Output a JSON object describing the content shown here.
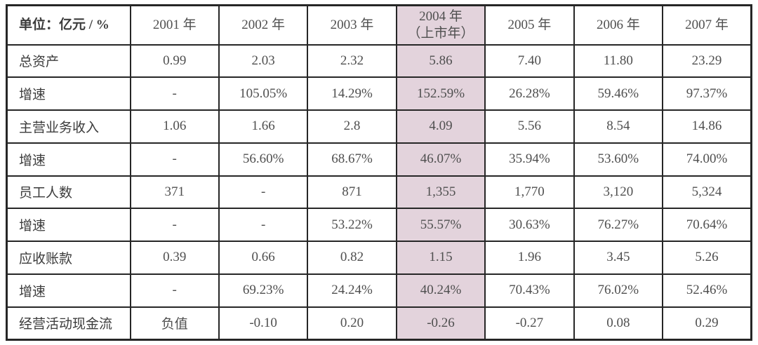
{
  "chart_data": {
    "type": "table",
    "unit_header": "单位：亿元 / %",
    "highlight_col_index": 3,
    "highlight_color": "#e3d3dc",
    "border_color": "#262626",
    "text_color": "#4f4f4f",
    "columns": [
      {
        "label": "2001 年"
      },
      {
        "label": "2002 年"
      },
      {
        "label": "2003 年"
      },
      {
        "label": "2004 年",
        "sublabel": "（上市年）",
        "highlight": true
      },
      {
        "label": "2005 年"
      },
      {
        "label": "2006 年"
      },
      {
        "label": "2007 年"
      }
    ],
    "rows": [
      {
        "label": "总资产",
        "values": [
          "0.99",
          "2.03",
          "2.32",
          "5.86",
          "7.40",
          "11.80",
          "23.29"
        ]
      },
      {
        "label": "增速",
        "values": [
          "-",
          "105.05%",
          "14.29%",
          "152.59%",
          "26.28%",
          "59.46%",
          "97.37%"
        ]
      },
      {
        "label": "主营业务收入",
        "values": [
          "1.06",
          "1.66",
          "2.8",
          "4.09",
          "5.56",
          "8.54",
          "14.86"
        ]
      },
      {
        "label": "增速",
        "values": [
          "-",
          "56.60%",
          "68.67%",
          "46.07%",
          "35.94%",
          "53.60%",
          "74.00%"
        ]
      },
      {
        "label": "员工人数",
        "values": [
          "371",
          "-",
          "871",
          "1,355",
          "1,770",
          "3,120",
          "5,324"
        ]
      },
      {
        "label": "增速",
        "values": [
          "-",
          "-",
          "53.22%",
          "55.57%",
          "30.63%",
          "76.27%",
          "70.64%"
        ]
      },
      {
        "label": "应收账款",
        "values": [
          "0.39",
          "0.66",
          "0.82",
          "1.15",
          "1.96",
          "3.45",
          "5.26"
        ]
      },
      {
        "label": "增速",
        "values": [
          "-",
          "69.23%",
          "24.24%",
          "40.24%",
          "70.43%",
          "76.02%",
          "52.46%"
        ]
      },
      {
        "label": "经营活动现金流",
        "values": [
          "负值",
          "-0.10",
          "0.20",
          "-0.26",
          "-0.27",
          "0.08",
          "0.29"
        ]
      }
    ]
  }
}
